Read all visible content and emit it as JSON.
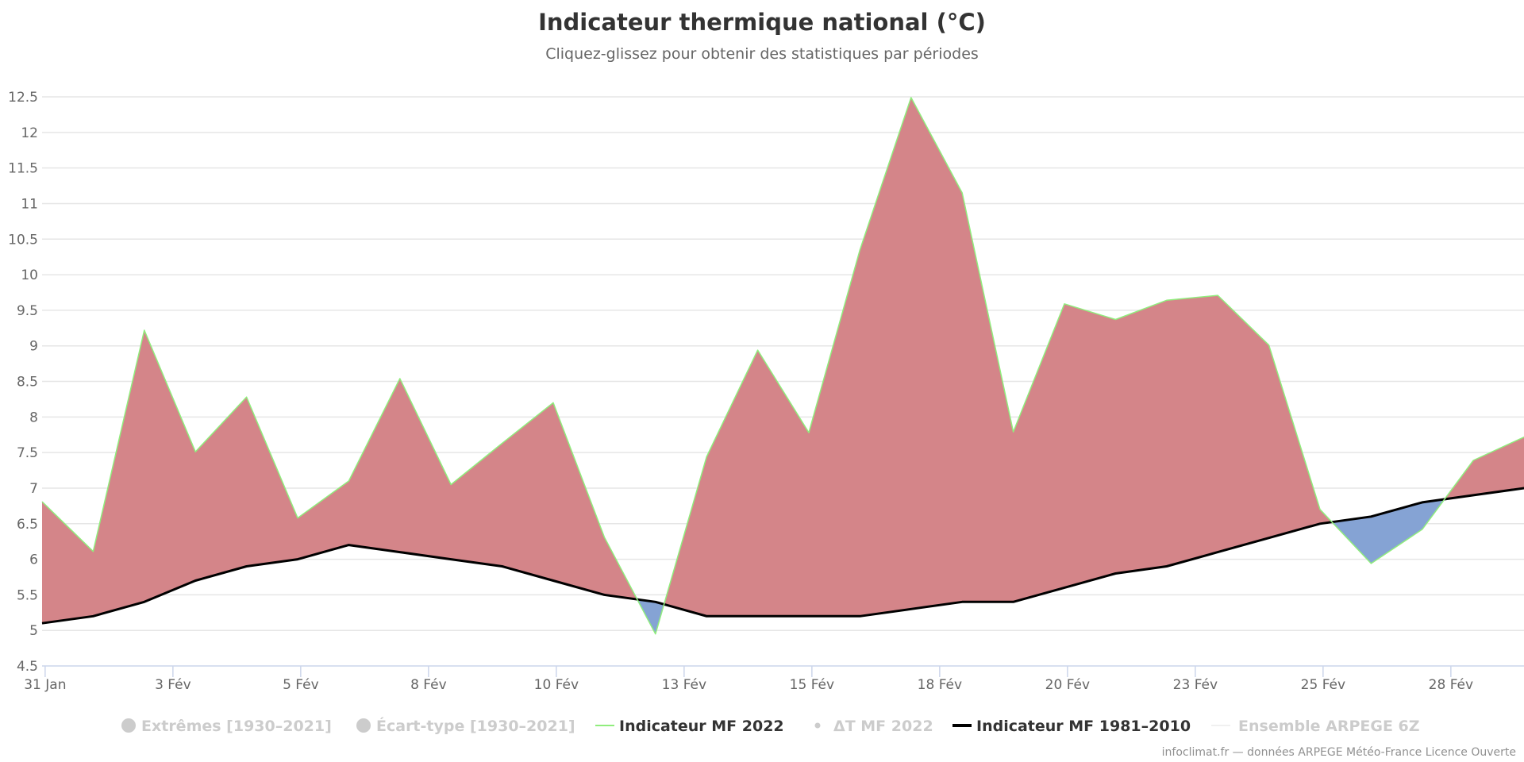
{
  "chart_data": {
    "type": "area",
    "title": "Indicateur thermique national (°C)",
    "subtitle": "Cliquez-glissez pour obtenir des statistiques par périodes",
    "xlabel": "",
    "ylabel": "",
    "ylim": [
      4.5,
      12.5
    ],
    "yticks": [
      4.5,
      5,
      5.5,
      6,
      6.5,
      7,
      7.5,
      8,
      8.5,
      9,
      9.5,
      10,
      10.5,
      11,
      11.5,
      12,
      12.5
    ],
    "ytick_labels": [
      "4.5",
      "5",
      "5.5",
      "6",
      "6.5",
      "7",
      "7.5",
      "8",
      "8.5",
      "9",
      "9.5",
      "10",
      "10.5",
      "11",
      "11.5",
      "12",
      "12.5"
    ],
    "x_unit": "day index from 31 Jan",
    "xlim": [
      0,
      29
    ],
    "xticks": [
      0.06,
      2.56,
      5.06,
      7.56,
      10.06,
      12.56,
      15.06,
      17.56,
      20.06,
      22.56,
      25.06,
      27.56
    ],
    "xtick_labels": [
      "31 Jan",
      "3 Fév",
      "5 Fév",
      "8 Fév",
      "10 Fév",
      "13 Fév",
      "15 Fév",
      "18 Fév",
      "20 Fév",
      "23 Fév",
      "25 Fév",
      "28 Fév"
    ],
    "grid": true,
    "x": [
      0,
      1,
      2,
      3,
      4,
      5,
      6,
      7,
      8,
      9,
      10,
      11,
      12,
      13,
      14,
      15,
      16,
      17,
      18,
      19,
      20,
      21,
      22,
      23,
      24,
      25,
      26,
      27,
      28,
      29
    ],
    "series": [
      {
        "name": "Indicateur MF 2022",
        "color": "#90ed7d",
        "values": [
          6.81,
          6.11,
          9.22,
          7.51,
          8.28,
          6.58,
          7.1,
          8.54,
          7.05,
          7.63,
          8.2,
          6.31,
          4.95,
          7.44,
          8.94,
          7.78,
          10.35,
          12.49,
          11.15,
          7.79,
          9.59,
          9.37,
          9.64,
          9.71,
          9.01,
          6.7,
          5.94,
          6.42,
          7.39,
          7.72
        ]
      },
      {
        "name": "Indicateur MF 1981–2010",
        "color": "#000000",
        "values": [
          5.1,
          5.2,
          5.4,
          5.7,
          5.9,
          6.0,
          6.2,
          6.1,
          6.0,
          5.9,
          5.7,
          5.5,
          5.4,
          5.2,
          5.2,
          5.2,
          5.2,
          5.3,
          5.4,
          5.4,
          5.6,
          5.8,
          5.9,
          6.1,
          6.3,
          6.5,
          6.6,
          6.8,
          6.9,
          7.0
        ]
      }
    ],
    "fill_between": {
      "above_color": "#d48589",
      "below_color": "#85a3d4"
    },
    "legend_position": "bottom-center",
    "legend": [
      {
        "label": "Extrêmes [1930–2021]",
        "symbol": "circle",
        "active": false,
        "color": "#cccccc"
      },
      {
        "label": "Écart-type [1930–2021]",
        "symbol": "circle",
        "active": false,
        "color": "#cccccc"
      },
      {
        "label": "Indicateur MF 2022",
        "symbol": "line",
        "active": true,
        "color": "#90ed7d"
      },
      {
        "label": "ΔT MF 2022",
        "symbol": "dot",
        "active": false,
        "color": "#cccccc"
      },
      {
        "label": "Indicateur MF 1981–2010",
        "symbol": "line",
        "active": true,
        "color": "#000000"
      },
      {
        "label": "Ensemble ARPEGE 6Z",
        "symbol": "thin-line",
        "active": false,
        "color": "#e0e0e0"
      }
    ],
    "credits": "infoclimat.fr — données ARPEGE Météo-France Licence Ouverte"
  }
}
